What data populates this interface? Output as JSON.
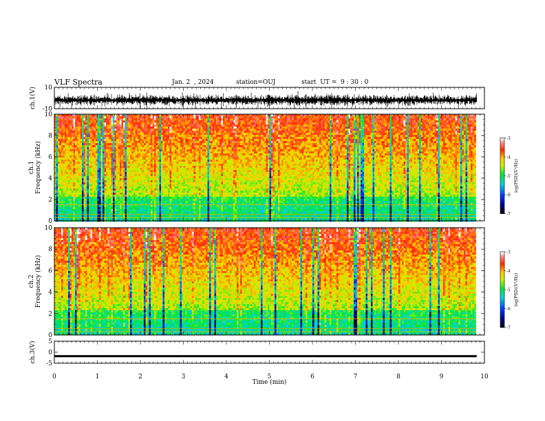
{
  "header": {
    "title": "VLF Spectra",
    "date": "Jan. 2  , 2024",
    "station": "station=OUJ",
    "start": "start  UT =  9 : 30 : 0"
  },
  "chart_data": [
    {
      "type": "line",
      "panel": "ch1-waveform",
      "ylabel": "ch.1(V)",
      "ylim": [
        -10,
        10
      ],
      "yticks": [
        "10",
        "-10"
      ],
      "xlim": [
        0,
        10
      ],
      "baseline_v": -2,
      "note_values": "dense oscillating waveform between about -6 and 6 V"
    },
    {
      "type": "heatmap",
      "panel": "ch1-spectrogram",
      "ylabel": "ch.1\nFrequency  (kHz)",
      "ylim": [
        0,
        10
      ],
      "yticks": [
        "0",
        "2",
        "4",
        "6",
        "8",
        "10"
      ],
      "xlim": [
        0,
        10
      ],
      "data_end_min": 9.82,
      "colorbar": {
        "label": "log(PSD)(V²/Hz)",
        "range": [
          -7,
          -3
        ],
        "ticks": [
          "-3",
          "-4",
          "-5",
          "-6",
          "-7"
        ]
      }
    },
    {
      "type": "heatmap",
      "panel": "ch2-spectrogram",
      "ylabel": "ch.2\nFrequency  (kHz)",
      "ylim": [
        0,
        10
      ],
      "yticks": [
        "0",
        "2",
        "4",
        "6",
        "8",
        "10"
      ],
      "xlim": [
        0,
        10
      ],
      "data_end_min": 9.82,
      "colorbar": {
        "label": "log(PSD)(V²/Hz)",
        "range": [
          -7,
          -3
        ],
        "ticks": [
          "-3",
          "-4",
          "-5",
          "-6",
          "-7"
        ]
      }
    },
    {
      "type": "line",
      "panel": "ch3-waveform",
      "ylabel": "ch.3(V)",
      "ylim": [
        -5,
        5
      ],
      "yticks": [
        "5",
        "0",
        "-5"
      ],
      "xlim": [
        0,
        10
      ],
      "x": [
        0,
        9.82
      ],
      "y": [
        -1.8,
        -1.8
      ]
    }
  ],
  "xaxis": {
    "label": "Time  (min)",
    "ticks": [
      "0",
      "1",
      "2",
      "3",
      "4",
      "5",
      "6",
      "7",
      "8",
      "9",
      "10"
    ]
  }
}
